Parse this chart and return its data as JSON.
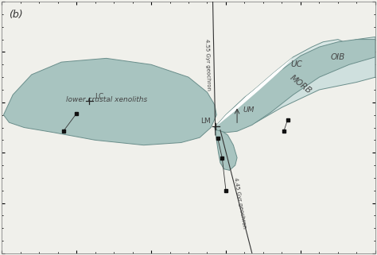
{
  "background_color": "#f0f0eb",
  "panel_label": "(b)",
  "geochron_455_label": "4.55 Gyr geochron",
  "geochron_445_label": "4.45 Gyr geochron",
  "labels": {
    "LCW": "lower crustal xenoliths",
    "LM": "LM",
    "LC": "LC",
    "UM": "UM",
    "MORB": "MORB",
    "UC": "UC",
    "OIB": "OIB"
  },
  "teal_color": "#92b0ad",
  "light_teal": "#a8c4c0",
  "lighter_teal": "#bdd4d1",
  "lightest_teal": "#cfe0de",
  "white_fill": "#e8f0ef",
  "line_color": "#555555",
  "text_color": "#444444",
  "edge_color": "#6a8e8b"
}
